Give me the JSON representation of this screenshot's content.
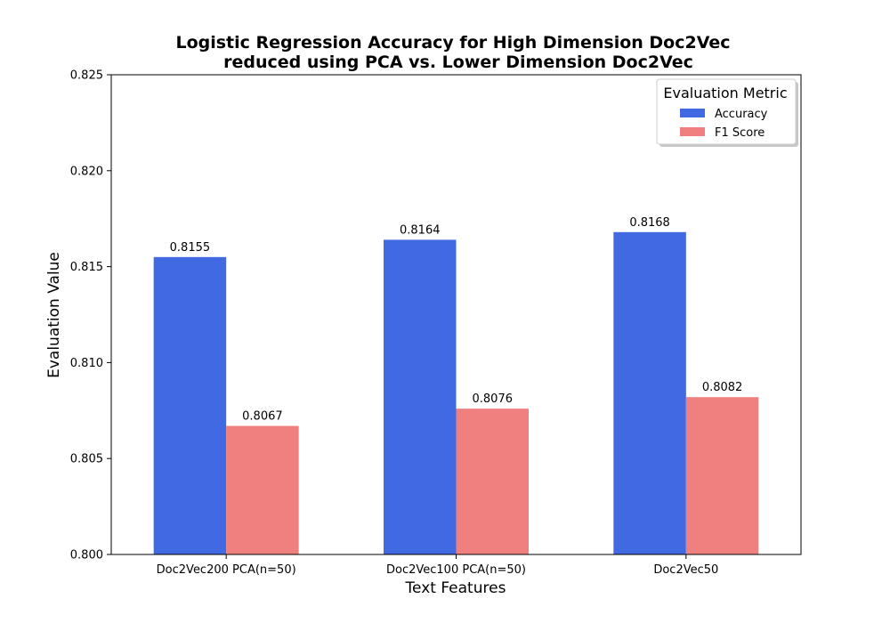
{
  "chart_data": {
    "type": "bar",
    "title": [
      "Logistic Regression Accuracy for High Dimension Doc2Vec",
      "reduced using PCA vs. Lower Dimension Doc2Vec"
    ],
    "xlabel": "Text Features",
    "ylabel": "Evaluation Value",
    "categories": [
      "Doc2Vec200 PCA(n=50)",
      "Doc2Vec100 PCA(n=50)",
      "Doc2Vec50"
    ],
    "series": [
      {
        "name": "Accuracy",
        "values": [
          0.8155,
          0.8164,
          0.8168
        ],
        "labels": [
          "0.8155",
          "0.8164",
          "0.8168"
        ],
        "color": "#4169e1"
      },
      {
        "name": "F1 Score",
        "values": [
          0.8067,
          0.8076,
          0.8082
        ],
        "labels": [
          "0.8067",
          "0.8076",
          "0.8082"
        ],
        "color": "#f08080"
      }
    ],
    "ylim": [
      0.8,
      0.825
    ],
    "yticks": [
      0.8,
      0.805,
      0.81,
      0.815,
      0.82,
      0.825
    ],
    "ytick_labels": [
      "0.800",
      "0.805",
      "0.810",
      "0.815",
      "0.820",
      "0.825"
    ],
    "grid": false,
    "legend": {
      "title": "Evaluation Metric",
      "placement": "top-right"
    }
  }
}
